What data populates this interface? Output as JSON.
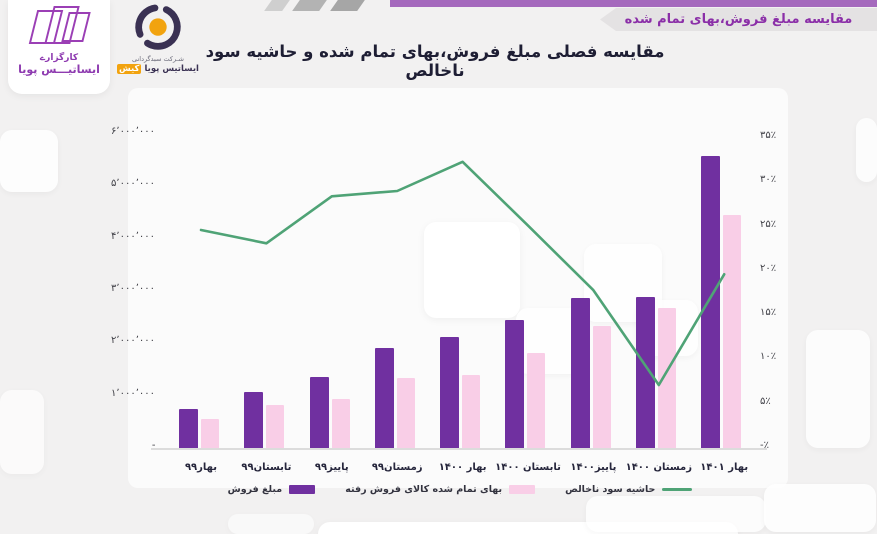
{
  "header": {
    "ribbon_label": "مقایسه مبلغ فروش،بهای تمام شده",
    "title": "مقایسه فصلی مبلغ فروش،بهای تمام شده و حاشیه سود ناخالص",
    "accent_bar_color": "#a569bd",
    "ribbon_text_color": "#8b2fa8"
  },
  "logos": {
    "brokerage": {
      "line1": "کارگزارے",
      "line2": "ایساتیـــس پویا",
      "color": "#8e3bb0"
    },
    "company": {
      "line1": "شـرکت سبدگردانی",
      "line2": "ایساتیس پویا",
      "highlight": "کیش",
      "navy": "#3a3153",
      "orange": "#f2a30f"
    }
  },
  "chart_data": {
    "type": "combo-bar-line",
    "title": "مقایسه فصلی مبلغ فروش،بهای تمام شده و حاشیه سود ناخالص",
    "categories": [
      "بهار۹۹",
      "تابستان۹۹",
      "پاییز۹۹",
      "زمستان۹۹",
      "بهار ۱۴۰۰",
      "تابستان ۱۴۰۰",
      "پاییز۱۴۰۰",
      "زمستان ۱۴۰۰",
      "بهار ۱۴۰۱"
    ],
    "series": [
      {
        "name": "مبلغ فروش",
        "type": "bar",
        "color": "#7030a0",
        "axis": "left",
        "values": [
          760000,
          1080000,
          1370000,
          1920000,
          2130000,
          2450000,
          2870000,
          2880000,
          5560000
        ]
      },
      {
        "name": "بهای تمام شده کالای فروش رفته",
        "type": "bar",
        "color": "#f9cee7",
        "axis": "left",
        "values": [
          570000,
          830000,
          950000,
          1350000,
          1400000,
          1820000,
          2330000,
          2680000,
          4440000
        ]
      },
      {
        "name": "حاشیه سود ناخالص",
        "type": "line",
        "color": "#4fa376",
        "axis": "right",
        "values": [
          24.5,
          23,
          28.3,
          28.9,
          32.2,
          25,
          17.7,
          7,
          19.5
        ]
      }
    ],
    "left_axis": {
      "min": 0,
      "max": 6000000,
      "tick_step": 1000000,
      "labels": [
        "۶٬۰۰۰٬۰۰۰",
        "۵٬۰۰۰٬۰۰۰",
        "۴٬۰۰۰٬۰۰۰",
        "۳٬۰۰۰٬۰۰۰",
        "۲٬۰۰۰٬۰۰۰",
        "۱٬۰۰۰٬۰۰۰",
        "-"
      ]
    },
    "right_axis": {
      "min": 0,
      "max": 35,
      "unit": "%",
      "tick_step": 5,
      "labels": [
        "۳۵٪",
        "۳۰٪",
        "۲۵٪",
        "۲۰٪",
        "۱۵٪",
        "۱۰٪",
        "۵٪",
        "-٪"
      ]
    },
    "grid": false,
    "legend_position": "bottom"
  }
}
